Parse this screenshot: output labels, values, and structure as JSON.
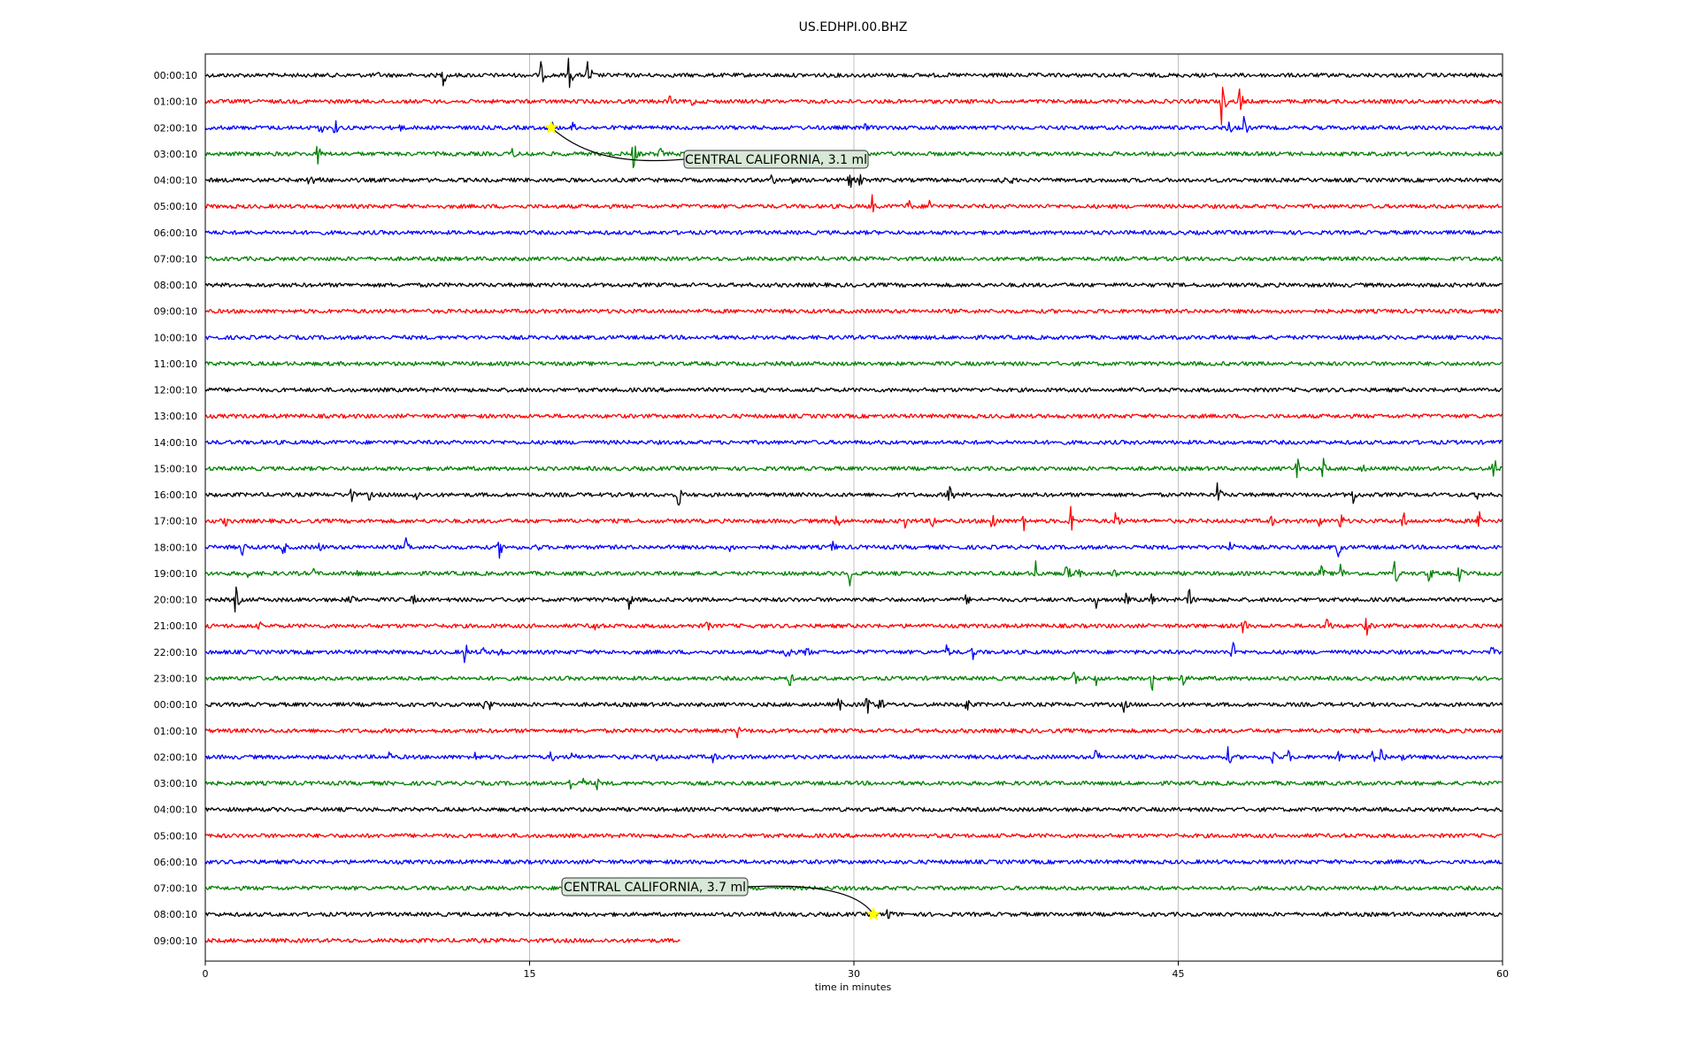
{
  "chart_data": {
    "type": "line",
    "title": "US.EDHPI.00.BHZ",
    "xlabel": "time in minutes",
    "ylabel": "",
    "xlim": [
      0,
      60
    ],
    "xticks": [
      "0",
      "15",
      "30",
      "45",
      "60"
    ],
    "x_tick_values": [
      0,
      15,
      30,
      45,
      60
    ],
    "grid": "vertical at 15-minute intervals",
    "colors": [
      "#000000",
      "#ff0000",
      "#0000ff",
      "#008000"
    ],
    "rows": [
      {
        "label": "00:00:10",
        "end": 60,
        "events": [
          [
            8,
            2
          ],
          [
            11,
            6
          ],
          [
            15.5,
            8
          ],
          [
            16.8,
            10
          ],
          [
            17.7,
            10
          ],
          [
            37,
            2
          ]
        ]
      },
      {
        "label": "01:00:10",
        "end": 60,
        "events": [
          [
            21.5,
            4
          ],
          [
            22.5,
            4
          ],
          [
            47,
            12
          ],
          [
            47.8,
            10
          ]
        ]
      },
      {
        "label": "02:00:10",
        "end": 60,
        "events": [
          [
            5.3,
            5
          ],
          [
            6,
            5
          ],
          [
            9,
            3
          ],
          [
            16,
            5
          ],
          [
            17,
            4
          ],
          [
            30.5,
            3
          ],
          [
            47.3,
            6
          ],
          [
            48,
            8
          ]
        ]
      },
      {
        "label": "03:00:10",
        "end": 60,
        "events": [
          [
            5.2,
            6
          ],
          [
            14.2,
            4
          ],
          [
            15,
            4
          ],
          [
            19.8,
            9
          ],
          [
            21,
            5
          ]
        ]
      },
      {
        "label": "04:00:10",
        "end": 60,
        "events": [
          [
            4.8,
            7
          ],
          [
            5.3,
            5
          ],
          [
            26.2,
            5
          ],
          [
            27,
            5
          ],
          [
            29.8,
            6
          ],
          [
            30.3,
            6
          ],
          [
            36.8,
            4
          ],
          [
            37.2,
            4
          ]
        ]
      },
      {
        "label": "05:00:10",
        "end": 60,
        "events": [
          [
            30.8,
            8
          ],
          [
            32.5,
            5
          ],
          [
            33.5,
            5
          ]
        ]
      },
      {
        "label": "06:00:10",
        "end": 60,
        "events": []
      },
      {
        "label": "07:00:10",
        "end": 60,
        "events": []
      },
      {
        "label": "08:00:10",
        "end": 60,
        "events": []
      },
      {
        "label": "09:00:10",
        "end": 60,
        "events": []
      },
      {
        "label": "10:00:10",
        "end": 60,
        "events": []
      },
      {
        "label": "11:00:10",
        "end": 60,
        "events": []
      },
      {
        "label": "12:00:10",
        "end": 60,
        "events": []
      },
      {
        "label": "13:00:10",
        "end": 60,
        "events": []
      },
      {
        "label": "14:00:10",
        "end": 60,
        "events": []
      },
      {
        "label": "15:00:10",
        "end": 60,
        "events": [
          [
            50.5,
            8
          ],
          [
            51.7,
            6
          ],
          [
            53.5,
            4
          ],
          [
            59.6,
            8
          ]
        ]
      },
      {
        "label": "16:00:10",
        "end": 60,
        "events": [
          [
            6.7,
            6
          ],
          [
            7.6,
            4
          ],
          [
            9.7,
            6
          ],
          [
            21.9,
            8
          ],
          [
            34.4,
            9
          ],
          [
            46.8,
            8
          ],
          [
            53.1,
            6
          ],
          [
            58.8,
            4
          ]
        ]
      },
      {
        "label": "17:00:10",
        "end": 60,
        "events": [
          [
            0.9,
            4
          ],
          [
            29.2,
            6
          ],
          [
            32.4,
            6
          ],
          [
            33.6,
            6
          ],
          [
            36.4,
            8
          ],
          [
            37.8,
            8
          ],
          [
            40,
            10
          ],
          [
            42.1,
            8
          ],
          [
            49.3,
            4
          ],
          [
            51.5,
            4
          ],
          [
            52.5,
            6
          ],
          [
            55.4,
            6
          ],
          [
            58.9,
            8
          ]
        ]
      },
      {
        "label": "18:00:10",
        "end": 60,
        "events": [
          [
            1.7,
            6
          ],
          [
            3.6,
            5
          ],
          [
            5.3,
            4
          ],
          [
            9.3,
            6
          ],
          [
            13.6,
            6
          ],
          [
            15.3,
            4
          ],
          [
            24.3,
            4
          ],
          [
            29,
            5
          ],
          [
            47.4,
            8
          ],
          [
            52.4,
            6
          ]
        ]
      },
      {
        "label": "19:00:10",
        "end": 60,
        "events": [
          [
            2,
            3
          ],
          [
            5,
            3
          ],
          [
            7,
            3
          ],
          [
            29.8,
            7
          ],
          [
            38.4,
            7
          ],
          [
            39.8,
            8
          ],
          [
            40.3,
            6
          ],
          [
            42,
            4
          ],
          [
            51.6,
            6
          ],
          [
            52.5,
            6
          ],
          [
            55,
            8
          ],
          [
            56.6,
            6
          ],
          [
            58,
            6
          ],
          [
            60,
            8
          ]
        ]
      },
      {
        "label": "20:00:10",
        "end": 60,
        "events": [
          [
            1.4,
            8
          ],
          [
            6.7,
            6
          ],
          [
            9.6,
            4
          ],
          [
            14,
            5
          ],
          [
            19.6,
            6
          ],
          [
            35.2,
            4
          ],
          [
            41.2,
            5
          ],
          [
            42.6,
            4
          ],
          [
            43.8,
            5
          ],
          [
            45.5,
            7
          ]
        ]
      },
      {
        "label": "21:00:10",
        "end": 60,
        "events": [
          [
            2.5,
            3
          ],
          [
            18,
            6
          ],
          [
            23.2,
            4
          ],
          [
            48,
            6
          ],
          [
            51.9,
            8
          ],
          [
            53.7,
            6
          ]
        ]
      },
      {
        "label": "22:00:10",
        "end": 60,
        "events": [
          [
            12,
            7
          ],
          [
            12.8,
            4
          ],
          [
            13.6,
            4
          ],
          [
            26.9,
            8
          ],
          [
            27.8,
            5
          ],
          [
            34.3,
            5
          ],
          [
            35.5,
            5
          ],
          [
            47.5,
            7
          ],
          [
            59.5,
            4
          ]
        ]
      },
      {
        "label": "23:00:10",
        "end": 60,
        "events": [
          [
            27,
            6
          ],
          [
            40.2,
            8
          ],
          [
            41.2,
            5
          ],
          [
            43.8,
            8
          ],
          [
            45.2,
            5
          ]
        ]
      },
      {
        "label": "00:00:10",
        "end": 60,
        "events": [
          [
            12.9,
            4
          ],
          [
            13.2,
            4
          ],
          [
            29.3,
            5
          ],
          [
            30.6,
            9
          ],
          [
            31.2,
            6
          ],
          [
            35.2,
            6
          ],
          [
            42.5,
            5
          ]
        ]
      },
      {
        "label": "01:00:10",
        "end": 60,
        "events": [
          [
            24.6,
            4
          ]
        ]
      },
      {
        "label": "02:00:10",
        "end": 60,
        "events": [
          [
            8.5,
            4
          ],
          [
            12.5,
            4
          ],
          [
            16,
            4
          ],
          [
            17,
            4
          ],
          [
            20.8,
            4
          ],
          [
            23.5,
            4
          ],
          [
            41.2,
            6
          ],
          [
            47.3,
            6
          ],
          [
            49.4,
            7
          ],
          [
            50.1,
            4
          ],
          [
            52.4,
            4
          ],
          [
            54,
            4
          ],
          [
            54.4,
            7
          ],
          [
            55.4,
            4
          ]
        ]
      },
      {
        "label": "03:00:10",
        "end": 60,
        "events": [
          [
            16.9,
            5
          ],
          [
            17.5,
            5
          ],
          [
            18.1,
            4
          ]
        ]
      },
      {
        "label": "04:00:10",
        "end": 60,
        "events": []
      },
      {
        "label": "05:00:10",
        "end": 60,
        "events": []
      },
      {
        "label": "06:00:10",
        "end": 60,
        "events": []
      },
      {
        "label": "07:00:10",
        "end": 60,
        "events": []
      },
      {
        "label": "08:00:10",
        "end": 60,
        "events": [
          [
            31.6,
            6
          ]
        ]
      },
      {
        "label": "09:00:10",
        "end": 22,
        "events": []
      }
    ],
    "annotations": [
      {
        "text": "CENTRAL CALIFORNIA, 3.1 ml",
        "row": 2,
        "x_minutes": 16.0
      },
      {
        "text": "CENTRAL CALIFORNIA, 3.7 ml",
        "row": 32,
        "x_minutes": 30.9
      }
    ]
  }
}
